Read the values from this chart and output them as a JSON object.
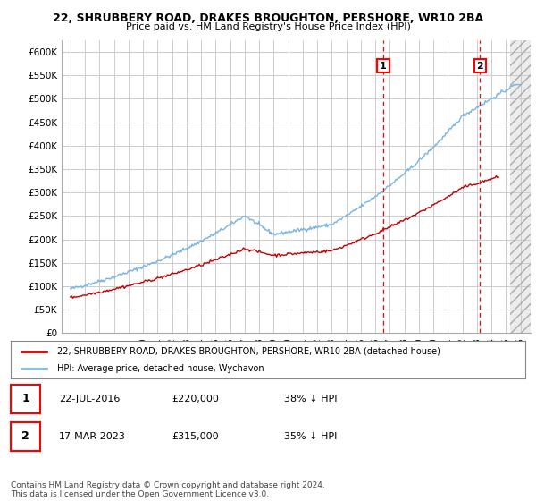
{
  "title1": "22, SHRUBBERY ROAD, DRAKES BROUGHTON, PERSHORE, WR10 2BA",
  "title2": "Price paid vs. HM Land Registry's House Price Index (HPI)",
  "ylim": [
    0,
    620000
  ],
  "hpi_color": "#7ab4e0",
  "price_color": "#c00000",
  "bg_color": "#ffffff",
  "grid_color": "#cccccc",
  "marker1_x": 2016.55,
  "marker2_x": 2023.21,
  "marker1_label": "1",
  "marker2_label": "2",
  "legend_line1": "22, SHRUBBERY ROAD, DRAKES BROUGHTON, PERSHORE, WR10 2BA (detached house)",
  "legend_line2": "HPI: Average price, detached house, Wychavon",
  "note1_label": "1",
  "note1_date": "22-JUL-2016",
  "note1_price": "£220,000",
  "note1_hpi": "38% ↓ HPI",
  "note2_label": "2",
  "note2_date": "17-MAR-2023",
  "note2_price": "£315,000",
  "note2_hpi": "35% ↓ HPI",
  "copyright": "Contains HM Land Registry data © Crown copyright and database right 2024.\nThis data is licensed under the Open Government Licence v3.0."
}
